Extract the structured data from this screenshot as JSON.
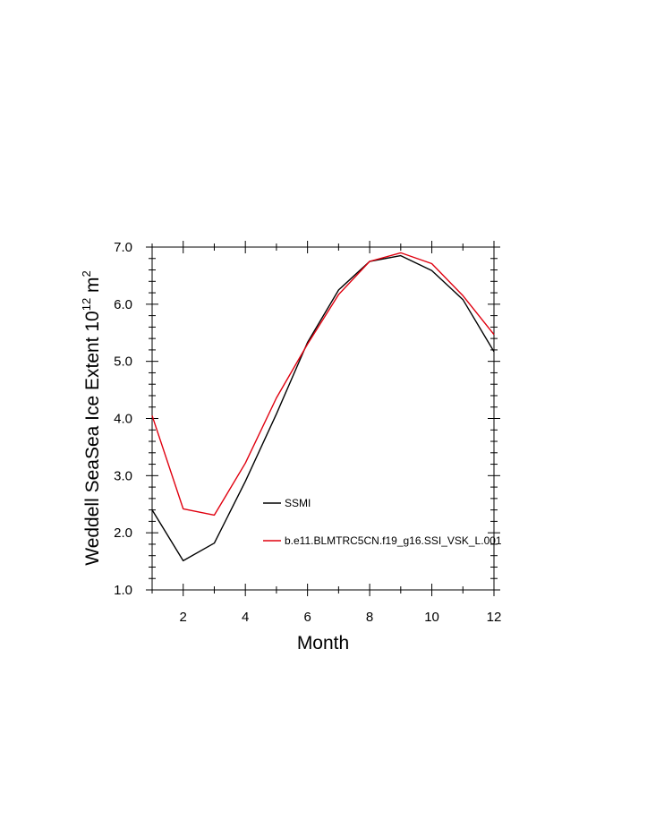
{
  "chart_data": {
    "type": "line",
    "title": "",
    "xlabel": "Month",
    "ylabel": "Weddell SeaSea Ice Extent 10",
    "ylabel_sup1": "12",
    "ylabel_unit": " m",
    "ylabel_sup2": "2",
    "xlim": [
      1,
      12
    ],
    "ylim": [
      1.0,
      7.0
    ],
    "xticks": [
      2,
      4,
      6,
      8,
      10,
      12
    ],
    "xtick_labels": [
      "2",
      "4",
      "6",
      "8",
      "10",
      "12"
    ],
    "yticks": [
      1.0,
      2.0,
      3.0,
      4.0,
      5.0,
      6.0,
      7.0
    ],
    "ytick_labels": [
      "1.0",
      "2.0",
      "3.0",
      "4.0",
      "5.0",
      "6.0",
      "7.0"
    ],
    "grid": false,
    "legend_position": "inside-center-bottom",
    "x": [
      1,
      2,
      3,
      4,
      5,
      6,
      7,
      8,
      9,
      10,
      11,
      12
    ],
    "series": [
      {
        "name": "SSMI",
        "color": "#000000",
        "values": [
          2.4,
          1.51,
          1.82,
          2.9,
          4.08,
          5.33,
          6.25,
          6.75,
          6.85,
          6.59,
          6.08,
          5.17
        ]
      },
      {
        "name": "b.e11.BLMTRC5CN.f19_g16.SSI_VSK_L.001",
        "color": "#e0000f",
        "values": [
          4.05,
          2.42,
          2.31,
          3.22,
          4.36,
          5.3,
          6.17,
          6.75,
          6.9,
          6.71,
          6.15,
          5.47
        ]
      }
    ]
  }
}
